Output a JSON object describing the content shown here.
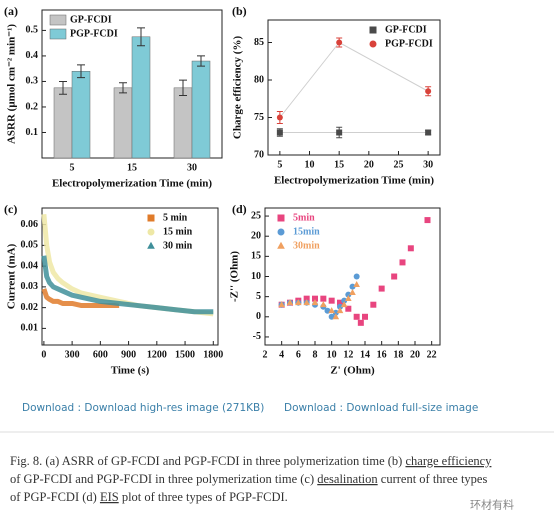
{
  "chart_data": [
    {
      "type": "bar",
      "label": "(a)",
      "ylabel": "ASRR (μmol cm⁻² min⁻¹)",
      "xlabel": "Electropolymerization Time (min)",
      "categories": [
        "5",
        "15",
        "30"
      ],
      "series": [
        {
          "name": "GP-FCDI",
          "color": "#c4c4c4",
          "values": [
            0.275,
            0.275,
            0.275
          ],
          "errors": [
            0.025,
            0.02,
            0.03
          ]
        },
        {
          "name": "PGP-FCDI",
          "color": "#7fcad6",
          "values": [
            0.34,
            0.475,
            0.38
          ],
          "errors": [
            0.025,
            0.035,
            0.02
          ]
        }
      ],
      "ylim": [
        0,
        0.58
      ],
      "yticks": [
        0.1,
        0.2,
        0.3,
        0.4,
        0.5
      ],
      "legend": "upper left"
    },
    {
      "type": "line",
      "label": "(b)",
      "ylabel": "Charge efficiency (%)",
      "xlabel": "Electropolymerization Time (min)",
      "x": [
        5,
        15,
        30
      ],
      "line_color": "#cfcfcf",
      "series": [
        {
          "name": "GP-FCDI",
          "color": "#4a4a4a",
          "marker": "square",
          "values": [
            73,
            73,
            73
          ],
          "errors": [
            0.5,
            0.7,
            0.3
          ]
        },
        {
          "name": "PGP-FCDI",
          "color": "#d9423a",
          "marker": "circle",
          "values": [
            75,
            85,
            78.5
          ],
          "errors": [
            0.8,
            0.6,
            0.6
          ]
        }
      ],
      "xlim": [
        3,
        32
      ],
      "xticks": [
        5,
        10,
        15,
        20,
        25,
        30
      ],
      "ylim": [
        70,
        88
      ],
      "yticks": [
        70,
        75,
        80,
        85
      ],
      "legend": "upper right"
    },
    {
      "type": "line",
      "label": "(c)",
      "ylabel": "Current (mA)",
      "xlabel": "Time (s)",
      "markers": false,
      "x": [
        0,
        30,
        60,
        100,
        150,
        200,
        300,
        400,
        600,
        800,
        1000,
        1200,
        1400,
        1600,
        1800
      ],
      "series": [
        {
          "name": "5 min",
          "color": "#e07b2a",
          "marker": "square",
          "values": [
            0.029,
            0.025,
            0.024,
            0.023,
            0.023,
            0.022,
            0.022,
            0.021,
            0.021,
            0.021,
            null,
            null,
            null,
            null,
            null
          ]
        },
        {
          "name": "15 min",
          "color": "#eee8a6",
          "marker": "circle",
          "values": [
            0.065,
            0.05,
            0.042,
            0.037,
            0.034,
            0.032,
            0.029,
            0.027,
            0.025,
            0.023,
            0.021,
            0.02,
            0.019,
            0.018,
            0.017
          ]
        },
        {
          "name": "30 min",
          "color": "#3f8f9a",
          "marker": "triangle",
          "values": [
            0.045,
            0.035,
            0.032,
            0.03,
            0.029,
            0.028,
            0.026,
            0.025,
            0.023,
            0.022,
            0.021,
            0.02,
            0.019,
            0.018,
            0.018
          ]
        }
      ],
      "xlim": [
        -20,
        1850
      ],
      "xticks": [
        0,
        300,
        600,
        900,
        1200,
        1500,
        1800
      ],
      "ylim": [
        0.002,
        0.068
      ],
      "yticks": [
        0.01,
        0.02,
        0.03,
        0.04,
        0.05,
        0.06
      ],
      "legend": "upper right"
    },
    {
      "type": "scatter",
      "label": "(d)",
      "ylabel": "-Z'' (Ohm)",
      "xlabel": "Z' (Ohm)",
      "series": [
        {
          "name": "5min",
          "color": "#e8457f",
          "marker": "square",
          "x": [
            4,
            5,
            6,
            7,
            8,
            9,
            10,
            11,
            12,
            13,
            13.5,
            14,
            15,
            16,
            17.5,
            18.5,
            19.5,
            21.5
          ],
          "values": [
            3,
            3.5,
            4,
            4.5,
            4.5,
            4.5,
            4,
            3.5,
            2,
            0,
            -1.5,
            0,
            3,
            7,
            10,
            13.5,
            17,
            24
          ]
        },
        {
          "name": "15min",
          "color": "#5b9bd5",
          "marker": "circle",
          "x": [
            4,
            5,
            6,
            7,
            8,
            9,
            9.5,
            10,
            10.5,
            11,
            11.5,
            12,
            12.5,
            13
          ],
          "values": [
            3,
            3.5,
            3.5,
            3.5,
            3,
            2.5,
            1.5,
            0,
            1,
            2.5,
            4,
            5.5,
            7.5,
            10
          ]
        },
        {
          "name": "30min",
          "color": "#f0a060",
          "marker": "triangle",
          "x": [
            4,
            5,
            6,
            7,
            8,
            9,
            10,
            10.5,
            11,
            11.5,
            12,
            12.5,
            13
          ],
          "values": [
            3,
            3.5,
            3.5,
            3.5,
            3.5,
            3,
            1.5,
            0,
            1.5,
            3,
            4.5,
            6,
            8
          ]
        }
      ],
      "xlim": [
        2,
        23
      ],
      "xticks": [
        2,
        4,
        6,
        8,
        10,
        12,
        14,
        16,
        18,
        20,
        22
      ],
      "ylim": [
        -7,
        27
      ],
      "yticks": [
        -5,
        0,
        5,
        10,
        15,
        20,
        25
      ],
      "legend": "upper left"
    }
  ],
  "links": [
    "Download : Download high-res image (271KB)",
    "Download : Download full-size image"
  ],
  "caption": [
    [
      {
        "text": "Fig. 8. (a) ASRR of GP-FCDI and PGP-FCDI in three polymerization time (b) "
      },
      {
        "text": "charge efficiency",
        "underline": true
      }
    ],
    [
      {
        "text": "of GP-FCDI and PGP-FCDI in three polymerization time (c) "
      },
      {
        "text": "desalination",
        "underline": true
      },
      {
        "text": " current of three types"
      }
    ],
    [
      {
        "text": "of PGP-FCDI (d) "
      },
      {
        "text": "EIS",
        "underline": true
      },
      {
        "text": " plot of three types of PGP-FCDI."
      }
    ]
  ],
  "watermark": "环材有料"
}
